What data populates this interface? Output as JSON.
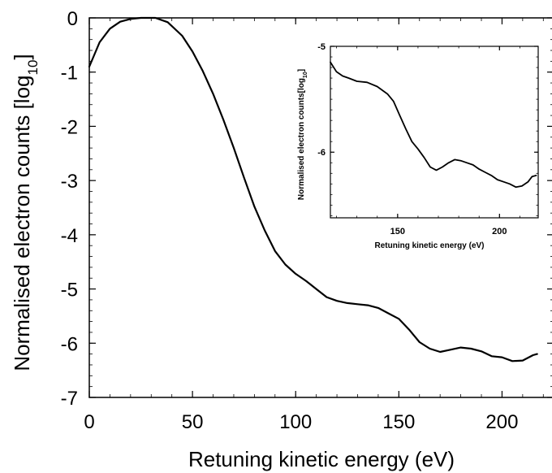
{
  "chart_data": [
    {
      "type": "line",
      "xlabel": "Retuning kinetic energy (eV)",
      "ylabel": "Normalised electron counts [log",
      "ylabel_sub": "10",
      "ylabel_close": "]",
      "xlim": [
        0,
        225
      ],
      "ylim": [
        -7,
        0
      ],
      "x_ticks": [
        0,
        50,
        100,
        150,
        200
      ],
      "x_tick_labels": [
        "0",
        "50",
        "100",
        "150",
        "200"
      ],
      "y_ticks": [
        0,
        -1,
        -2,
        -3,
        -4,
        -5,
        -6,
        -7
      ],
      "y_tick_labels": [
        "0",
        "-1",
        "-2",
        "-3",
        "-4",
        "-5",
        "-6",
        "-7"
      ],
      "grid": false,
      "series": [
        {
          "color": "#000000",
          "x": [
            0,
            5,
            10,
            15,
            20,
            25,
            28,
            32,
            38,
            45,
            50,
            55,
            60,
            65,
            70,
            75,
            80,
            85,
            90,
            95,
            100,
            105,
            110,
            115,
            120,
            125,
            130,
            135,
            140,
            145,
            150,
            155,
            160,
            165,
            170,
            175,
            180,
            185,
            190,
            195,
            200,
            205,
            210,
            215,
            217
          ],
          "y": [
            -0.9,
            -0.45,
            -0.2,
            -0.07,
            -0.02,
            0,
            0,
            0,
            -0.08,
            -0.33,
            -0.62,
            -0.98,
            -1.4,
            -1.88,
            -2.4,
            -2.95,
            -3.48,
            -3.92,
            -4.3,
            -4.55,
            -4.72,
            -4.85,
            -5.0,
            -5.15,
            -5.22,
            -5.26,
            -5.28,
            -5.3,
            -5.35,
            -5.45,
            -5.55,
            -5.75,
            -5.98,
            -6.1,
            -6.16,
            -6.12,
            -6.08,
            -6.1,
            -6.15,
            -6.24,
            -6.26,
            -6.33,
            -6.32,
            -6.22,
            -6.2
          ]
        }
      ]
    },
    {
      "type": "line",
      "xlabel": "Retuning kinetic energy (eV)",
      "ylabel": "Normalised electron counts[log",
      "ylabel_sub": "10",
      "ylabel_close": "]",
      "xlim": [
        117,
        219
      ],
      "ylim": [
        -6.62,
        -5
      ],
      "x_ticks": [
        150,
        200
      ],
      "x_tick_labels": [
        "150",
        "200"
      ],
      "y_ticks": [
        -5,
        -6
      ],
      "y_tick_labels": [
        "-5",
        "-6"
      ],
      "grid": false,
      "series": [
        {
          "color": "#000000",
          "x": [
            117,
            120,
            123,
            126,
            130,
            135,
            140,
            145,
            148,
            151,
            154,
            157,
            160,
            163,
            166,
            169,
            172,
            175,
            178,
            181,
            184,
            187,
            190,
            193,
            196,
            199,
            202,
            205,
            208,
            211,
            214,
            216,
            218
          ],
          "y": [
            -5.15,
            -5.24,
            -5.28,
            -5.3,
            -5.33,
            -5.34,
            -5.38,
            -5.45,
            -5.52,
            -5.65,
            -5.78,
            -5.9,
            -5.97,
            -6.05,
            -6.14,
            -6.17,
            -6.14,
            -6.1,
            -6.07,
            -6.08,
            -6.1,
            -6.12,
            -6.16,
            -6.19,
            -6.22,
            -6.26,
            -6.28,
            -6.3,
            -6.33,
            -6.32,
            -6.28,
            -6.23,
            -6.22
          ]
        }
      ]
    }
  ]
}
